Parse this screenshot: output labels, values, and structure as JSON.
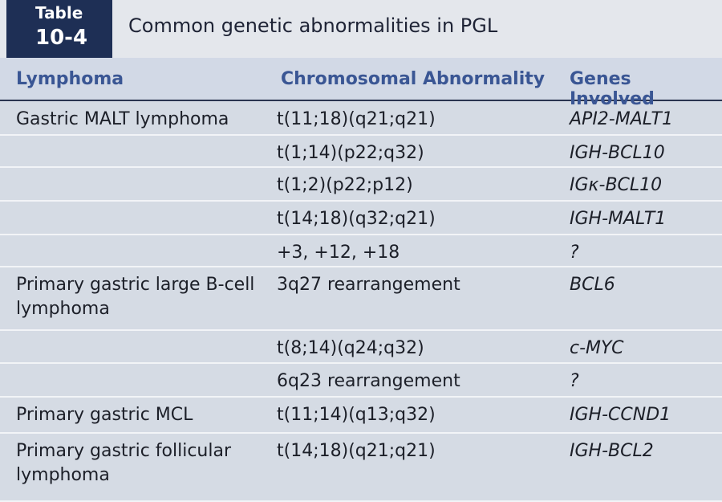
{
  "header": {
    "label_top": "Table",
    "label_number": "10-4",
    "title": "Common genetic abnormalities in PGL"
  },
  "table": {
    "columns": [
      "Lymphoma",
      "Chromosomal Abnormality",
      "Genes Involved"
    ],
    "rows": [
      {
        "lymphoma": "Gastric MALT lymphoma",
        "abnormality": "t(11;18)(q21;q21)",
        "genes": "API2-MALT1"
      },
      {
        "abnormality": "t(1;14)(p22;q32)",
        "genes": "IGH-BCL10"
      },
      {
        "abnormality": "t(1;2)(p22;p12)",
        "genes": "IGκ-BCL10"
      },
      {
        "abnormality": "t(14;18)(q32;q21)",
        "genes": "IGH-MALT1"
      },
      {
        "abnormality": "+3, +12, +18",
        "genes": "?"
      },
      {
        "lymphoma": "Primary gastric large B-cell lymphoma",
        "abnormality": "3q27 rearrangement",
        "genes": "BCL6"
      },
      {
        "abnormality": "t(8;14)(q24;q32)",
        "genes": "c-MYC"
      },
      {
        "abnormality": "6q23 rearrangement",
        "genes": "?"
      },
      {
        "lymphoma": "Primary gastric MCL",
        "abnormality": "t(11;14)(q13;q32)",
        "genes": "IGH-CCND1"
      },
      {
        "lymphoma": "Primary gastric follicular lymphoma",
        "abnormality": "t(14;18)(q21;q21)",
        "genes": "IGH-BCL2"
      }
    ]
  }
}
